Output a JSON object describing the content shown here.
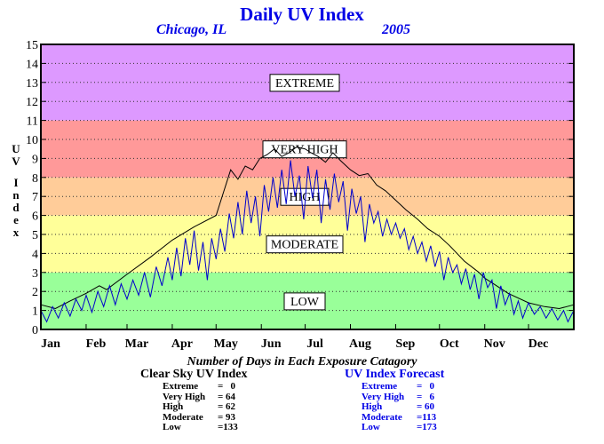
{
  "title": "Daily UV Index",
  "subtitle_city": "Chicago, IL",
  "subtitle_year": "2005",
  "y_axis_label": "UV Index",
  "stats": {
    "heading": "Number of Days in Each Exposure Catagory",
    "clear_sky": {
      "title": "Clear Sky UV Index",
      "rows": [
        {
          "label": "Extreme",
          "value": "=   0"
        },
        {
          "label": "Very High",
          "value": "= 64"
        },
        {
          "label": "High",
          "value": "= 62"
        },
        {
          "label": "Moderate",
          "value": "= 93"
        },
        {
          "label": "Low",
          "value": "=133"
        }
      ]
    },
    "forecast": {
      "title": "UV Index Forecast",
      "rows": [
        {
          "label": "Extreme",
          "value": "=   0"
        },
        {
          "label": "Very High",
          "value": "=   6"
        },
        {
          "label": "High",
          "value": "= 60"
        },
        {
          "label": "Moderate",
          "value": "=113"
        },
        {
          "label": "Low",
          "value": "=173"
        }
      ]
    }
  },
  "chart_data": {
    "type": "line",
    "title": "Daily UV Index",
    "xlabel": "",
    "ylabel": "UV Index",
    "xlim": [
      0,
      365
    ],
    "ylim": [
      0,
      15
    ],
    "x_ticks": [
      {
        "label": "Jan",
        "day": 0
      },
      {
        "label": "Feb",
        "day": 31
      },
      {
        "label": "Mar",
        "day": 59
      },
      {
        "label": "Apr",
        "day": 90
      },
      {
        "label": "May",
        "day": 120
      },
      {
        "label": "Jun",
        "day": 151
      },
      {
        "label": "Jul",
        "day": 181
      },
      {
        "label": "Aug",
        "day": 212
      },
      {
        "label": "Sep",
        "day": 243
      },
      {
        "label": "Oct",
        "day": 273
      },
      {
        "label": "Nov",
        "day": 304
      },
      {
        "label": "Dec",
        "day": 334
      }
    ],
    "y_ticks": [
      0,
      1,
      2,
      3,
      4,
      5,
      6,
      7,
      8,
      9,
      10,
      11,
      12,
      13,
      14,
      15
    ],
    "grid": true,
    "bands": [
      {
        "label": "LOW",
        "from": 0,
        "to": 3,
        "color": "#99ff99"
      },
      {
        "label": "MODERATE",
        "from": 3,
        "to": 6,
        "color": "#ffff99"
      },
      {
        "label": "HIGH",
        "from": 6,
        "to": 8,
        "color": "#ffcc99"
      },
      {
        "label": "VERY HIGH",
        "from": 8,
        "to": 11,
        "color": "#ff9999"
      },
      {
        "label": "EXTREME",
        "from": 11,
        "to": 15,
        "color": "#dd99ff"
      }
    ],
    "series": [
      {
        "name": "Clear Sky UV Index",
        "color": "#000000",
        "points": [
          [
            0,
            1.3
          ],
          [
            10,
            1.1
          ],
          [
            20,
            1.5
          ],
          [
            31,
            1.9
          ],
          [
            40,
            2.3
          ],
          [
            45,
            2.1
          ],
          [
            59,
            2.9
          ],
          [
            75,
            3.8
          ],
          [
            90,
            4.7
          ],
          [
            105,
            5.4
          ],
          [
            120,
            6.0
          ],
          [
            125,
            7.2
          ],
          [
            130,
            8.4
          ],
          [
            135,
            7.9
          ],
          [
            140,
            8.6
          ],
          [
            145,
            8.4
          ],
          [
            150,
            9.0
          ],
          [
            155,
            9.2
          ],
          [
            160,
            9.5
          ],
          [
            165,
            9.1
          ],
          [
            170,
            9.3
          ],
          [
            175,
            9.6
          ],
          [
            181,
            9.5
          ],
          [
            185,
            9.3
          ],
          [
            190,
            9.1
          ],
          [
            195,
            8.8
          ],
          [
            200,
            9.3
          ],
          [
            205,
            8.9
          ],
          [
            212,
            8.4
          ],
          [
            218,
            8.1
          ],
          [
            224,
            8.2
          ],
          [
            230,
            7.6
          ],
          [
            236,
            7.3
          ],
          [
            243,
            6.8
          ],
          [
            250,
            6.3
          ],
          [
            258,
            5.8
          ],
          [
            265,
            5.3
          ],
          [
            273,
            4.9
          ],
          [
            280,
            4.4
          ],
          [
            290,
            3.6
          ],
          [
            300,
            3.0
          ],
          [
            304,
            2.7
          ],
          [
            310,
            2.4
          ],
          [
            320,
            1.9
          ],
          [
            334,
            1.4
          ],
          [
            345,
            1.2
          ],
          [
            355,
            1.1
          ],
          [
            365,
            1.3
          ]
        ]
      },
      {
        "name": "UV Index Forecast",
        "color": "#0000cc",
        "points": [
          [
            0,
            1.0
          ],
          [
            4,
            0.4
          ],
          [
            8,
            1.2
          ],
          [
            12,
            0.6
          ],
          [
            16,
            1.4
          ],
          [
            20,
            0.7
          ],
          [
            24,
            1.6
          ],
          [
            28,
            1.0
          ],
          [
            31,
            1.8
          ],
          [
            35,
            0.9
          ],
          [
            39,
            2.0
          ],
          [
            43,
            1.2
          ],
          [
            47,
            2.3
          ],
          [
            51,
            1.3
          ],
          [
            55,
            2.4
          ],
          [
            59,
            1.6
          ],
          [
            63,
            2.6
          ],
          [
            67,
            1.8
          ],
          [
            71,
            3.0
          ],
          [
            75,
            1.7
          ],
          [
            79,
            3.3
          ],
          [
            83,
            2.3
          ],
          [
            87,
            3.8
          ],
          [
            90,
            2.6
          ],
          [
            93,
            4.3
          ],
          [
            96,
            2.8
          ],
          [
            99,
            4.8
          ],
          [
            102,
            3.4
          ],
          [
            105,
            5.2
          ],
          [
            108,
            3.1
          ],
          [
            111,
            4.6
          ],
          [
            114,
            2.6
          ],
          [
            117,
            4.8
          ],
          [
            120,
            3.7
          ],
          [
            123,
            5.3
          ],
          [
            126,
            4.1
          ],
          [
            129,
            6.1
          ],
          [
            132,
            4.8
          ],
          [
            135,
            6.7
          ],
          [
            138,
            5.0
          ],
          [
            141,
            7.3
          ],
          [
            144,
            5.6
          ],
          [
            147,
            7.0
          ],
          [
            150,
            4.9
          ],
          [
            153,
            7.6
          ],
          [
            156,
            6.2
          ],
          [
            159,
            8.0
          ],
          [
            162,
            6.4
          ],
          [
            165,
            8.4
          ],
          [
            168,
            6.6
          ],
          [
            171,
            8.9
          ],
          [
            174,
            7.0
          ],
          [
            177,
            8.1
          ],
          [
            180,
            5.8
          ],
          [
            183,
            8.6
          ],
          [
            186,
            6.9
          ],
          [
            189,
            8.4
          ],
          [
            192,
            5.6
          ],
          [
            195,
            7.9
          ],
          [
            198,
            6.3
          ],
          [
            201,
            8.2
          ],
          [
            204,
            6.7
          ],
          [
            207,
            7.8
          ],
          [
            210,
            5.2
          ],
          [
            213,
            7.4
          ],
          [
            216,
            6.1
          ],
          [
            219,
            7.0
          ],
          [
            222,
            4.6
          ],
          [
            225,
            6.6
          ],
          [
            228,
            5.6
          ],
          [
            231,
            6.2
          ],
          [
            234,
            4.9
          ],
          [
            237,
            5.8
          ],
          [
            240,
            5.0
          ],
          [
            243,
            5.6
          ],
          [
            246,
            4.8
          ],
          [
            249,
            5.3
          ],
          [
            252,
            4.2
          ],
          [
            255,
            4.9
          ],
          [
            258,
            4.0
          ],
          [
            261,
            4.6
          ],
          [
            264,
            3.6
          ],
          [
            267,
            4.4
          ],
          [
            270,
            3.3
          ],
          [
            273,
            4.1
          ],
          [
            276,
            2.6
          ],
          [
            279,
            3.8
          ],
          [
            282,
            3.0
          ],
          [
            285,
            3.4
          ],
          [
            288,
            2.4
          ],
          [
            291,
            3.2
          ],
          [
            294,
            2.1
          ],
          [
            297,
            2.9
          ],
          [
            300,
            1.6
          ],
          [
            303,
            3.0
          ],
          [
            306,
            2.2
          ],
          [
            309,
            2.6
          ],
          [
            312,
            1.1
          ],
          [
            315,
            2.3
          ],
          [
            318,
            1.3
          ],
          [
            321,
            1.9
          ],
          [
            324,
            0.8
          ],
          [
            327,
            1.5
          ],
          [
            330,
            0.6
          ],
          [
            334,
            1.4
          ],
          [
            338,
            0.8
          ],
          [
            342,
            1.2
          ],
          [
            346,
            0.6
          ],
          [
            350,
            1.1
          ],
          [
            354,
            0.5
          ],
          [
            358,
            1.0
          ],
          [
            361,
            0.4
          ],
          [
            365,
            1.0
          ]
        ]
      }
    ]
  }
}
